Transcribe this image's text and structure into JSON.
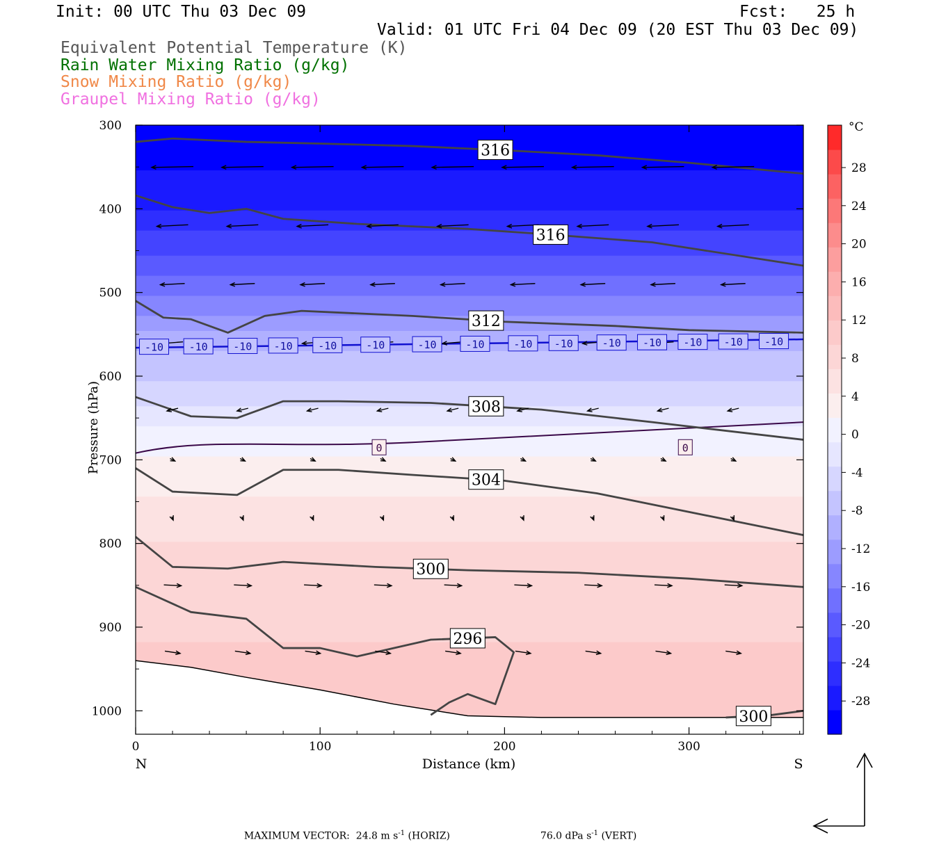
{
  "header": {
    "init": "Init: 00 UTC Thu 03 Dec 09",
    "fcst": "Fcst:   25 h",
    "valid": "Valid: 01 UTC Fri 04 Dec 09 (20 EST Thu 03 Dec 09)"
  },
  "legend": [
    {
      "text": "Equivalent Potential Temperature (K)",
      "color": "#555555"
    },
    {
      "text": "Rain Water Mixing Ratio (g/kg)",
      "color": "#007000"
    },
    {
      "text": "Snow Mixing Ratio (g/kg)",
      "color": "#f08848"
    },
    {
      "text": "Graupel Mixing Ratio (g/kg)",
      "color": "#f070e0"
    }
  ],
  "footer": {
    "max_vector": "MAXIMUM VECTOR:  24.8 m s",
    "max_vector_unit": "-1",
    "horiz": " (HORIZ)",
    "vert": "76.0 dPa s",
    "vert_unit": "-1",
    "vert_tail": " (VERT)"
  },
  "chart_data": {
    "type": "contour",
    "xlabel": "Distance (km)",
    "ylabel": "Pressure (hPa)",
    "xlim": [
      0,
      362
    ],
    "ylim": [
      1028,
      300
    ],
    "x_ticks": [
      0,
      100,
      200,
      300
    ],
    "y_ticks": [
      300,
      400,
      500,
      600,
      700,
      800,
      900,
      1000
    ],
    "endpoints": {
      "left": "N",
      "right": "S"
    },
    "colorbar": {
      "unit": "°C",
      "tick_labels": [
        "28",
        "24",
        "20",
        "16",
        "12",
        "8",
        "4",
        "0",
        "-4",
        "-8",
        "-12",
        "-16",
        "-20",
        "-24",
        "-28"
      ],
      "colors": [
        "#0000ff",
        "#1a1aff",
        "#2e2eff",
        "#4444ff",
        "#5a5aff",
        "#7070ff",
        "#8686ff",
        "#9c9cff",
        "#b0b0ff",
        "#c4c4ff",
        "#d6d6ff",
        "#e6e6ff",
        "#f2f2ff",
        "#fbeeee",
        "#fce2e2",
        "#fcd6d6",
        "#fccaca",
        "#fcbcbc",
        "#fcaeae",
        "#fc9e9e",
        "#fc8c8c",
        "#fc7878",
        "#fc6262",
        "#fc4a4a",
        "#ff2a2a"
      ]
    },
    "temperature_field": [
      {
        "p": 300,
        "t": -32
      },
      {
        "p": 380,
        "t": -30
      },
      {
        "p": 440,
        "t": -24
      },
      {
        "p": 500,
        "t": -18
      },
      {
        "p": 565,
        "t": -10
      },
      {
        "p": 620,
        "t": -6
      },
      {
        "p": 660,
        "t": -2
      },
      {
        "p": 700,
        "t": 1
      },
      {
        "p": 760,
        "t": 4
      },
      {
        "p": 820,
        "t": 7
      },
      {
        "p": 900,
        "t": 8
      },
      {
        "p": 1000,
        "t": 10
      }
    ],
    "theta_e_contours": [
      {
        "label": "316",
        "points": [
          [
            0,
            320
          ],
          [
            20,
            316
          ],
          [
            60,
            320
          ],
          [
            100,
            322
          ],
          [
            150,
            325
          ],
          [
            200,
            330
          ],
          [
            250,
            336
          ],
          [
            300,
            345
          ],
          [
            362,
            358
          ]
        ]
      },
      {
        "label": "316",
        "points": [
          [
            0,
            384
          ],
          [
            20,
            398
          ],
          [
            40,
            405
          ],
          [
            60,
            400
          ],
          [
            80,
            412
          ],
          [
            120,
            418
          ],
          [
            180,
            424
          ],
          [
            220,
            430
          ],
          [
            280,
            440
          ],
          [
            362,
            468
          ]
        ]
      },
      {
        "label": "312",
        "points": [
          [
            0,
            510
          ],
          [
            15,
            530
          ],
          [
            30,
            532
          ],
          [
            50,
            548
          ],
          [
            70,
            528
          ],
          [
            90,
            522
          ],
          [
            150,
            528
          ],
          [
            200,
            535
          ],
          [
            260,
            540
          ],
          [
            300,
            545
          ],
          [
            362,
            548
          ]
        ]
      },
      {
        "label": "308",
        "points": [
          [
            0,
            625
          ],
          [
            30,
            648
          ],
          [
            55,
            650
          ],
          [
            80,
            630
          ],
          [
            110,
            630
          ],
          [
            160,
            632
          ],
          [
            220,
            640
          ],
          [
            280,
            655
          ],
          [
            362,
            676
          ]
        ]
      },
      {
        "label": "304",
        "points": [
          [
            0,
            710
          ],
          [
            20,
            738
          ],
          [
            55,
            742
          ],
          [
            80,
            712
          ],
          [
            110,
            712
          ],
          [
            150,
            718
          ],
          [
            200,
            725
          ],
          [
            250,
            740
          ],
          [
            362,
            790
          ]
        ]
      },
      {
        "label": "300",
        "points": [
          [
            0,
            792
          ],
          [
            20,
            828
          ],
          [
            50,
            830
          ],
          [
            80,
            822
          ],
          [
            130,
            828
          ],
          [
            180,
            832
          ],
          [
            240,
            835
          ],
          [
            300,
            842
          ],
          [
            362,
            852
          ]
        ]
      },
      {
        "label": "296",
        "points": [
          [
            0,
            852
          ],
          [
            30,
            882
          ],
          [
            60,
            890
          ],
          [
            80,
            925
          ],
          [
            100,
            925
          ],
          [
            120,
            935
          ],
          [
            160,
            915
          ],
          [
            195,
            912
          ],
          [
            205,
            930
          ],
          [
            195,
            992
          ],
          [
            180,
            980
          ],
          [
            170,
            990
          ],
          [
            160,
            1005
          ]
        ]
      },
      {
        "label": "300",
        "points": [
          [
            320,
            1008
          ],
          [
            345,
            1005
          ],
          [
            362,
            1000
          ]
        ]
      }
    ],
    "isotherm_labels": [
      {
        "label": "-10",
        "p": 565
      },
      {
        "label": "0",
        "p": 685
      }
    ],
    "max_vector": {
      "horiz": "24.8 m s-1",
      "vert": "76.0 dPa s-1"
    }
  }
}
